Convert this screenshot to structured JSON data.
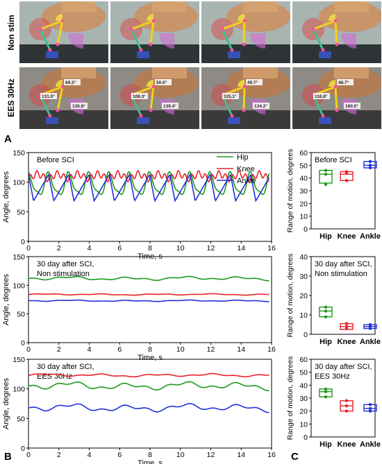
{
  "panels": {
    "a": "A",
    "b": "B",
    "c": "C"
  },
  "photo_rows": [
    {
      "label": "Non stim",
      "angle_labels": [
        [
          "",
          "",
          ""
        ],
        [
          "",
          "",
          ""
        ],
        [
          "",
          "",
          ""
        ],
        [
          "",
          "",
          ""
        ]
      ]
    },
    {
      "label": "EES 30Hz",
      "angle_labels": [
        [
          "69.2°",
          "131.0°",
          "130.8°"
        ],
        [
          "50.0°",
          "108.3°",
          "139.4°"
        ],
        [
          "49.7°",
          "115.1°",
          "134.2°"
        ],
        [
          "48.7°",
          "116.8°",
          "160.0°"
        ]
      ]
    }
  ],
  "colors": {
    "hip": "#1a9a1a",
    "knee": "#e8202a",
    "ankle": "#1f2fd8"
  },
  "chart_data": [
    {
      "type": "line",
      "title": "Before SCI",
      "xlabel": "Time, s",
      "ylabel": "Angle, degrees",
      "xlim": [
        0,
        16
      ],
      "ylim": [
        0,
        150
      ],
      "xticks": [
        0,
        2,
        4,
        6,
        8,
        10,
        12,
        14,
        16
      ],
      "yticks": [
        0,
        50,
        100,
        150
      ],
      "legend": {
        "position": "top-right",
        "entries": [
          "Hip",
          "Knee",
          "Ankle"
        ]
      },
      "series": [
        {
          "name": "Hip",
          "pattern": "oscillating",
          "period": 1.33,
          "mean": 95,
          "amplitude": 22
        },
        {
          "name": "Knee",
          "pattern": "oscillating",
          "period": 1.33,
          "mean": 110,
          "amplitude": 10
        },
        {
          "name": "Ankle",
          "pattern": "oscillating",
          "period": 1.33,
          "mean": 85,
          "amplitude": 28
        }
      ]
    },
    {
      "type": "line",
      "title": "30 day after SCI,",
      "subtitle": "Non stimulation",
      "xlabel": "Time, s",
      "ylabel": "Angle, degrees",
      "xlim": [
        0,
        16
      ],
      "ylim": [
        0,
        150
      ],
      "xticks": [
        0,
        2,
        4,
        6,
        8,
        10,
        12,
        14,
        16
      ],
      "yticks": [
        0,
        50,
        100,
        150
      ],
      "series": [
        {
          "name": "Hip",
          "pattern": "flat",
          "mean": 112,
          "amplitude": 4
        },
        {
          "name": "Knee",
          "pattern": "flat",
          "mean": 84,
          "amplitude": 1.5
        },
        {
          "name": "Ankle",
          "pattern": "flat",
          "mean": 73,
          "amplitude": 1.5
        }
      ]
    },
    {
      "type": "line",
      "title": "30 day after SCI,",
      "subtitle": "EES 30Hz",
      "xlabel": "Time, s",
      "ylabel": "Angle, degrees",
      "xlim": [
        0,
        16
      ],
      "ylim": [
        0,
        150
      ],
      "xticks": [
        0,
        2,
        4,
        6,
        8,
        10,
        12,
        14,
        16
      ],
      "yticks": [
        0,
        50,
        100,
        150
      ],
      "series": [
        {
          "name": "Hip",
          "pattern": "flat",
          "mean": 105,
          "amplitude": 8
        },
        {
          "name": "Knee",
          "pattern": "flat",
          "mean": 123,
          "amplitude": 3
        },
        {
          "name": "Ankle",
          "pattern": "flat",
          "mean": 68,
          "amplitude": 8
        }
      ]
    },
    {
      "type": "box",
      "title": "Before SCI",
      "ylabel": "Range of motion, degrees",
      "ylim": [
        0,
        60
      ],
      "yticks": [
        0,
        10,
        20,
        30,
        40,
        50,
        60
      ],
      "categories": [
        "Hip",
        "Knee",
        "Ankle"
      ],
      "boxes": [
        {
          "q1": 36,
          "median": 43,
          "q3": 46,
          "points": [
            35,
            43,
            46
          ]
        },
        {
          "q1": 38,
          "median": 43,
          "q3": 45,
          "points": [
            38,
            44,
            45
          ]
        },
        {
          "q1": 48,
          "median": 50,
          "q3": 53,
          "points": [
            48,
            50,
            53
          ]
        }
      ]
    },
    {
      "type": "box",
      "title": "30 day after SCI,",
      "subtitle": "Non stimulation",
      "ylabel": "Range of motion, degrees",
      "ylim": [
        0,
        40
      ],
      "yticks": [
        0,
        10,
        20,
        30,
        40
      ],
      "categories": [
        "Hip",
        "Knee",
        "Ankle"
      ],
      "boxes": [
        {
          "q1": 9,
          "median": 12,
          "q3": 14,
          "points": [
            9,
            12,
            14
          ]
        },
        {
          "q1": 2.5,
          "median": 4,
          "q3": 5.5,
          "points": [
            3,
            4,
            5.5
          ]
        },
        {
          "q1": 3,
          "median": 4,
          "q3": 5,
          "points": [
            3,
            4,
            5
          ]
        }
      ]
    },
    {
      "type": "box",
      "title": "30 day after SCI,",
      "subtitle": "EES 30Hz",
      "ylabel": "Range of motion, degrees",
      "ylim": [
        0,
        60
      ],
      "yticks": [
        0,
        10,
        20,
        30,
        40,
        50,
        60
      ],
      "categories": [
        "Hip",
        "Knee",
        "Ankle"
      ],
      "boxes": [
        {
          "q1": 31,
          "median": 35,
          "q3": 37,
          "points": [
            31,
            35,
            37
          ]
        },
        {
          "q1": 20,
          "median": 24,
          "q3": 28,
          "points": [
            20,
            24,
            28
          ]
        },
        {
          "q1": 20,
          "median": 22,
          "q3": 25,
          "points": [
            20,
            22,
            25
          ]
        }
      ]
    }
  ]
}
